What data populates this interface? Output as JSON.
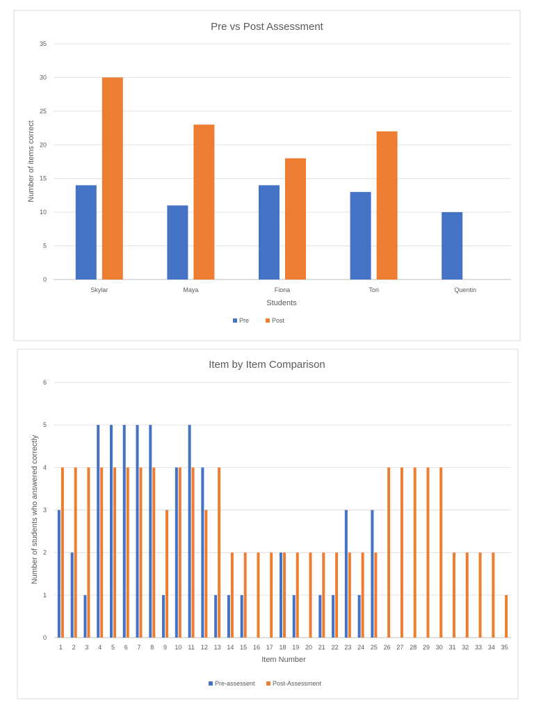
{
  "chart_data": [
    {
      "type": "bar",
      "title": "Pre vs Post Assessment",
      "xlabel": "Students",
      "ylabel": "Number of items correct",
      "categories": [
        "Skylar",
        "Maya",
        "Fiona",
        "Tori",
        "Quentin"
      ],
      "ylim": [
        0,
        35
      ],
      "yticks": [
        0,
        5,
        10,
        15,
        20,
        25,
        30,
        35
      ],
      "grid": true,
      "legend_position": "bottom",
      "series": [
        {
          "name": "Pre",
          "color": "#4472C4",
          "values": [
            14,
            11,
            14,
            13,
            10
          ]
        },
        {
          "name": "Post",
          "color": "#ED7D31",
          "values": [
            30,
            23,
            18,
            22,
            0
          ]
        }
      ]
    },
    {
      "type": "bar",
      "title": "Item by Item Comparison",
      "xlabel": "Item Number",
      "ylabel": "Number of students who answered correctly",
      "categories": [
        "1",
        "2",
        "3",
        "4",
        "5",
        "6",
        "7",
        "8",
        "9",
        "10",
        "11",
        "12",
        "13",
        "14",
        "15",
        "16",
        "17",
        "18",
        "19",
        "20",
        "21",
        "22",
        "23",
        "24",
        "25",
        "26",
        "27",
        "28",
        "29",
        "30",
        "31",
        "32",
        "33",
        "34",
        "35"
      ],
      "ylim": [
        0,
        6
      ],
      "yticks": [
        0,
        1,
        2,
        3,
        4,
        5,
        6
      ],
      "grid": true,
      "legend_position": "bottom",
      "series": [
        {
          "name": "Pre-assessent",
          "color": "#4472C4",
          "values": [
            3,
            2,
            1,
            5,
            5,
            5,
            5,
            5,
            1,
            4,
            5,
            4,
            1,
            1,
            1,
            0,
            0,
            2,
            1,
            0,
            1,
            1,
            3,
            1,
            3,
            0,
            0,
            0,
            0,
            0,
            0,
            0,
            0,
            0,
            0
          ]
        },
        {
          "name": "Post-Assessment",
          "color": "#ED7D31",
          "values": [
            4,
            4,
            4,
            4,
            4,
            4,
            4,
            4,
            3,
            4,
            4,
            3,
            4,
            2,
            2,
            2,
            2,
            2,
            2,
            2,
            2,
            2,
            2,
            2,
            2,
            4,
            4,
            4,
            4,
            4,
            2,
            2,
            2,
            2,
            1
          ]
        }
      ]
    }
  ]
}
